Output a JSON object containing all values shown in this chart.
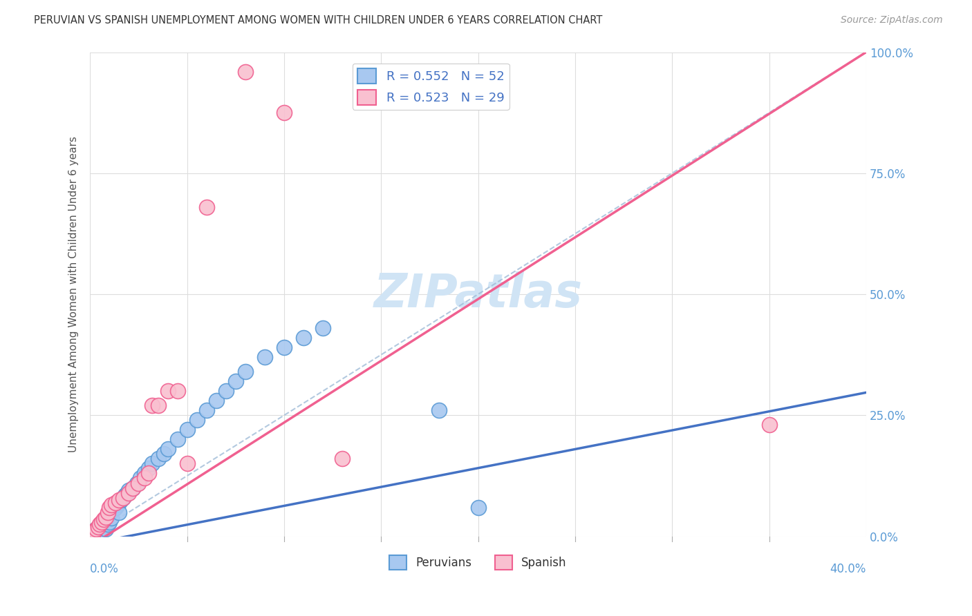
{
  "title": "PERUVIAN VS SPANISH UNEMPLOYMENT AMONG WOMEN WITH CHILDREN UNDER 6 YEARS CORRELATION CHART",
  "source": "Source: ZipAtlas.com",
  "ylabel": "Unemployment Among Women with Children Under 6 years",
  "xlim": [
    0.0,
    0.4
  ],
  "ylim": [
    0.0,
    1.0
  ],
  "ytick_vals": [
    0.0,
    0.25,
    0.5,
    0.75,
    1.0
  ],
  "ytick_labels": [
    "0.0%",
    "25.0%",
    "50.0%",
    "75.0%",
    "100.0%"
  ],
  "legend_r1": "R = 0.552   N = 52",
  "legend_r2": "R = 0.523   N = 29",
  "peruvian_face_color": "#A8C8F0",
  "peruvian_edge_color": "#5B9BD5",
  "spanish_face_color": "#F9C0D0",
  "spanish_edge_color": "#F06090",
  "peruvian_line_color": "#4472C4",
  "spanish_line_color": "#F06090",
  "ref_line_color": "#A0BCD8",
  "watermark_color": "#D0E4F5",
  "peru_x": [
    0.001,
    0.002,
    0.003,
    0.003,
    0.004,
    0.005,
    0.005,
    0.006,
    0.006,
    0.007,
    0.007,
    0.008,
    0.008,
    0.009,
    0.009,
    0.01,
    0.01,
    0.011,
    0.011,
    0.012,
    0.013,
    0.014,
    0.015,
    0.015,
    0.016,
    0.017,
    0.018,
    0.019,
    0.02,
    0.022,
    0.024,
    0.026,
    0.028,
    0.03,
    0.032,
    0.035,
    0.038,
    0.04,
    0.045,
    0.05,
    0.055,
    0.06,
    0.065,
    0.07,
    0.075,
    0.08,
    0.09,
    0.1,
    0.11,
    0.12,
    0.18,
    0.2
  ],
  "peru_y": [
    0.005,
    0.008,
    0.01,
    0.015,
    0.012,
    0.02,
    0.008,
    0.025,
    0.018,
    0.03,
    0.022,
    0.035,
    0.015,
    0.04,
    0.025,
    0.045,
    0.03,
    0.05,
    0.038,
    0.055,
    0.06,
    0.065,
    0.07,
    0.05,
    0.075,
    0.08,
    0.085,
    0.09,
    0.095,
    0.1,
    0.11,
    0.12,
    0.13,
    0.14,
    0.15,
    0.16,
    0.17,
    0.18,
    0.2,
    0.22,
    0.24,
    0.26,
    0.28,
    0.3,
    0.32,
    0.34,
    0.37,
    0.39,
    0.41,
    0.43,
    0.26,
    0.06
  ],
  "span_x": [
    0.001,
    0.002,
    0.003,
    0.004,
    0.005,
    0.006,
    0.007,
    0.008,
    0.009,
    0.01,
    0.011,
    0.013,
    0.015,
    0.017,
    0.02,
    0.022,
    0.025,
    0.028,
    0.03,
    0.032,
    0.035,
    0.04,
    0.045,
    0.05,
    0.06,
    0.08,
    0.1,
    0.13,
    0.35
  ],
  "span_y": [
    0.005,
    0.01,
    0.015,
    0.02,
    0.025,
    0.03,
    0.035,
    0.04,
    0.05,
    0.06,
    0.065,
    0.07,
    0.075,
    0.08,
    0.09,
    0.1,
    0.11,
    0.12,
    0.13,
    0.27,
    0.27,
    0.3,
    0.3,
    0.15,
    0.68,
    0.96,
    0.875,
    0.16,
    0.23
  ]
}
